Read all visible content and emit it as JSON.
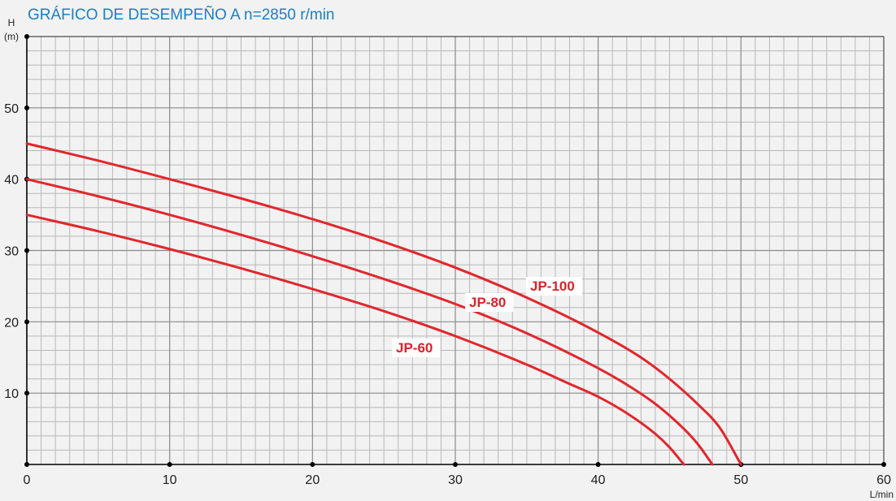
{
  "colors": {
    "title": "#1b7fc2",
    "curve": "#e2262c",
    "label": "#d9232a"
  },
  "chart_data": {
    "type": "line",
    "title": "GRÁFICO DE DESEMPEÑO A n=2850 r/min",
    "xlabel": "L/min",
    "ylabel": "H",
    "yunit": "(m)",
    "xlim": [
      0,
      60
    ],
    "ylim": [
      0,
      60
    ],
    "xticks": [
      0,
      10,
      20,
      30,
      40,
      50,
      60
    ],
    "yticks": [
      10,
      20,
      30,
      40,
      50
    ],
    "grid": true,
    "series": [
      {
        "name": "JP-100",
        "x": [
          0,
          5,
          10,
          15,
          20,
          25,
          30,
          35,
          40,
          43,
          45,
          47,
          48.5,
          50
        ],
        "y": [
          45,
          42.6,
          40,
          37.3,
          34.4,
          31.2,
          27.6,
          23.4,
          18.5,
          15,
          12,
          8.4,
          5.2,
          0
        ]
      },
      {
        "name": "JP-80",
        "x": [
          0,
          5,
          10,
          15,
          20,
          25,
          30,
          35,
          40,
          42,
          44,
          46,
          47,
          48
        ],
        "y": [
          40,
          37.6,
          35,
          32.2,
          29.2,
          26,
          22.5,
          18.4,
          13.5,
          11.2,
          8.5,
          5,
          2.8,
          0
        ]
      },
      {
        "name": "JP-60",
        "x": [
          0,
          5,
          10,
          15,
          20,
          25,
          30,
          35,
          38,
          40,
          42,
          44,
          45,
          46
        ],
        "y": [
          35,
          32.7,
          30.2,
          27.5,
          24.6,
          21.5,
          18,
          14,
          11.3,
          9.5,
          7.2,
          4.3,
          2.4,
          0
        ]
      }
    ]
  }
}
